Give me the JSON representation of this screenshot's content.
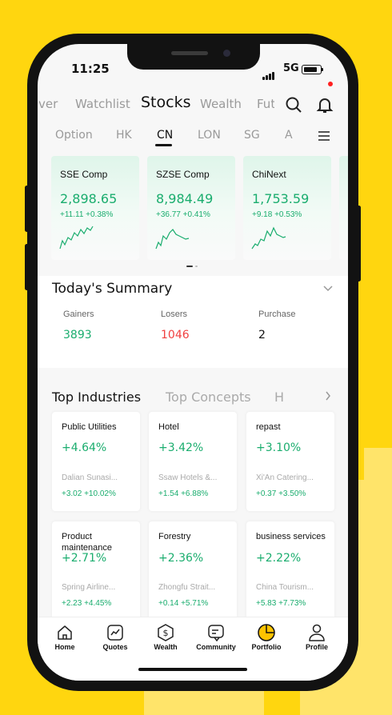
{
  "status": {
    "time": "11:25",
    "network": "5G"
  },
  "top_tabs": [
    "ver",
    "Watchlist",
    "Stocks",
    "Wealth",
    "Futu"
  ],
  "active_top_tab": "Stocks",
  "markets": [
    "Option",
    "HK",
    "CN",
    "LON",
    "SG",
    "A"
  ],
  "active_market": "CN",
  "indices": [
    {
      "name": "SSE Comp",
      "value": "2,898.65",
      "change": "+11.11 +0.38%"
    },
    {
      "name": "SZSE Comp",
      "value": "8,984.49",
      "change": "+36.77 +0.41%"
    },
    {
      "name": "ChiNext",
      "value": "1,753.59",
      "change": "+9.18 +0.53%"
    }
  ],
  "summary": {
    "title": "Today's Summary",
    "gainers_label": "Gainers",
    "gainers": "3893",
    "losers_label": "Losers",
    "losers": "1046",
    "purchase_label": "Purchase",
    "purchase": "2"
  },
  "industry_tabs": [
    "Top Industries",
    "Top Concepts",
    "H"
  ],
  "industries": [
    {
      "name": "Public Utilities",
      "change": "+4.64%",
      "stock": "Dalian Sunasi...",
      "stock_change": "+3.02 +10.02%"
    },
    {
      "name": "Hotel",
      "change": "+3.42%",
      "stock": "Ssaw Hotels &...",
      "stock_change": "+1.54 +6.88%"
    },
    {
      "name": "repast",
      "change": "+3.10%",
      "stock": "Xi'An Catering...",
      "stock_change": "+0.37 +3.50%"
    },
    {
      "name": "Product maintenance",
      "change": "+2.71%",
      "stock": "Spring Airline...",
      "stock_change": "+2.23 +4.45%"
    },
    {
      "name": "Forestry",
      "change": "+2.36%",
      "stock": "Zhongfu Strait...",
      "stock_change": "+0.14 +5.71%"
    },
    {
      "name": "business services",
      "change": "+2.22%",
      "stock": "China Tourism...",
      "stock_change": "+5.83 +7.73%"
    }
  ],
  "nav": [
    "Home",
    "Quotes",
    "Wealth",
    "Community",
    "Portfolio",
    "Profile"
  ],
  "colors": {
    "background": "#FFD60F",
    "up": "#1AAD6E",
    "down": "#F04040",
    "accent": "#FFC300"
  }
}
